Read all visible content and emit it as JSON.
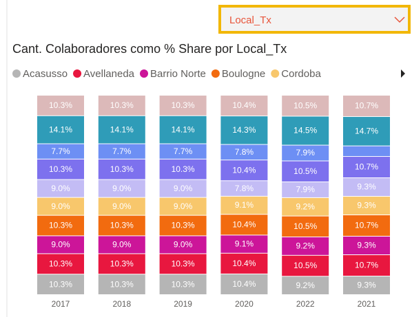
{
  "slicer": {
    "value": "Local_Tx"
  },
  "chart_data": {
    "type": "stacked_bar_100",
    "title": "Cant. Colaboradores como % Share por Local_Tx",
    "categories": [
      "2017",
      "2018",
      "2019",
      "2020",
      "2022",
      "2021"
    ],
    "series": [
      {
        "name": "Acasusso",
        "color": "#b5b5b5",
        "values": [
          10.3,
          10.3,
          10.3,
          10.4,
          9.2,
          9.3
        ],
        "value_labels": [
          "10.3%",
          "10.3%",
          "10.3%",
          "10.4%",
          "9.2%",
          "9.3%"
        ]
      },
      {
        "name": "Avellaneda",
        "color": "#e8173f",
        "values": [
          10.3,
          10.3,
          10.3,
          10.4,
          10.5,
          10.7
        ],
        "value_labels": [
          "10.3%",
          "10.3%",
          "10.3%",
          "10.4%",
          "10.5%",
          "10.7%"
        ]
      },
      {
        "name": "Barrio Norte",
        "color": "#cc1599",
        "values": [
          9.0,
          9.0,
          9.0,
          9.1,
          9.2,
          9.3
        ],
        "value_labels": [
          "9.0%",
          "9.0%",
          "9.0%",
          "9.1%",
          "9.2%",
          "9.3%"
        ]
      },
      {
        "name": "Boulogne",
        "color": "#f26b0f",
        "values": [
          10.3,
          10.3,
          10.3,
          10.4,
          10.5,
          10.7
        ],
        "value_labels": [
          "10.3%",
          "10.3%",
          "10.3%",
          "10.4%",
          "10.5%",
          "10.7%"
        ]
      },
      {
        "name": "Cordoba",
        "color": "#f8c76c",
        "values": [
          9.0,
          9.0,
          9.0,
          9.1,
          9.2,
          9.3
        ],
        "value_labels": [
          "9.0%",
          "9.0%",
          "9.0%",
          "9.1%",
          "9.2%",
          "9.3%"
        ]
      },
      {
        "color": "#c3bcf5",
        "values": [
          9.0,
          9.0,
          9.0,
          7.8,
          7.9,
          9.3
        ],
        "value_labels": [
          "9.0%",
          "9.0%",
          "9.0%",
          "7.8%",
          "7.9%",
          "9.3%"
        ]
      },
      {
        "color": "#7d71ee",
        "values": [
          10.3,
          10.3,
          10.3,
          10.4,
          10.5,
          10.7
        ],
        "value_labels": [
          "10.3%",
          "10.3%",
          "10.3%",
          "10.4%",
          "10.5%",
          "10.7%"
        ]
      },
      {
        "color": "#6d8ff4",
        "values": [
          7.7,
          7.7,
          7.7,
          7.8,
          7.9,
          5.3
        ],
        "value_labels": [
          "7.7%",
          "7.7%",
          "7.7%",
          "7.8%",
          "7.9%",
          null
        ]
      },
      {
        "color": "#2f9cb8",
        "values": [
          14.1,
          14.1,
          14.1,
          14.3,
          14.5,
          14.7
        ],
        "value_labels": [
          "14.1%",
          "14.1%",
          "14.1%",
          "14.3%",
          "14.5%",
          "14.7%"
        ]
      },
      {
        "color": "#dcb9b9",
        "values": [
          10.3,
          10.3,
          10.3,
          10.4,
          10.5,
          10.7
        ],
        "value_labels": [
          "10.3%",
          "10.3%",
          "10.3%",
          "10.4%",
          "10.5%",
          "10.7%"
        ]
      }
    ]
  }
}
